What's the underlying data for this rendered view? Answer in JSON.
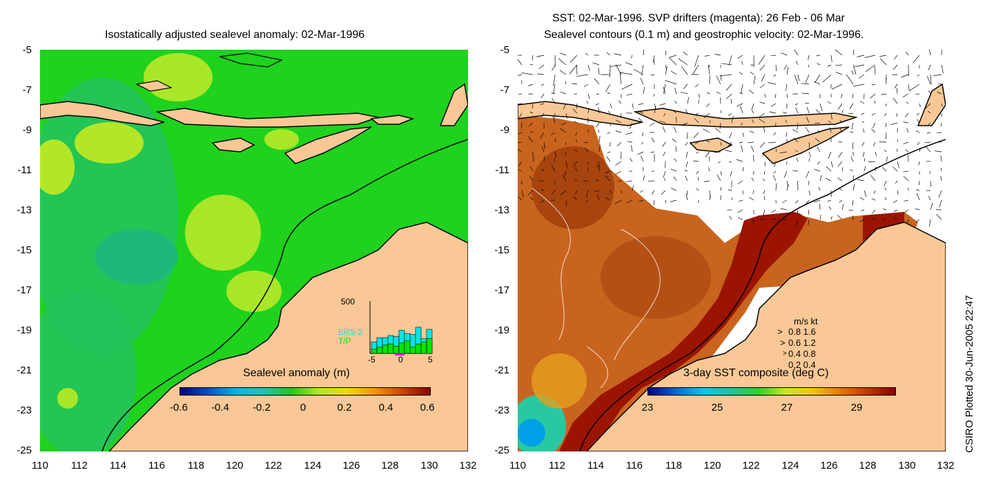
{
  "left_panel": {
    "title": "Isostatically adjusted sealevel anomaly: 02-Mar-1996",
    "colorbar": {
      "label": "Sealevel anomaly (m)",
      "ticks": [
        "-0.6",
        "-0.4",
        "-0.2",
        "0",
        "0.2",
        "0.4",
        "0.6"
      ],
      "colors": [
        "#000080",
        "#0050c8",
        "#00b4e6",
        "#18c8b4",
        "#20c820",
        "#b4e628",
        "#f0dc00",
        "#f09600",
        "#d24100",
        "#8c0000"
      ]
    },
    "inset": {
      "ymax_label": "500",
      "legend": [
        {
          "label": "ERS-2",
          "color": "#00e6e6"
        },
        {
          "label": "T/P",
          "color": "#00e600"
        }
      ],
      "x_ticks": [
        "-5",
        "0",
        "5"
      ],
      "ers2_counts": [
        110,
        150,
        150,
        170,
        160,
        220,
        190,
        180,
        250,
        140,
        230
      ],
      "tp_counts": [
        40,
        60,
        80,
        90,
        70,
        100,
        120,
        60,
        90,
        110,
        140
      ]
    }
  },
  "right_panel": {
    "title_line1": "SST: 02-Mar-1996. SVP drifters (magenta): 26 Feb - 06 Mar",
    "title_line2": "Sealevel contours (0.1 m) and geostrophic velocity: 02-Mar-1996.",
    "colorbar": {
      "label": "3-day SST composite (deg C)",
      "ticks": [
        "23",
        "25",
        "27",
        "29"
      ],
      "colors": [
        "#000080",
        "#0064dc",
        "#00c8f0",
        "#18c8a0",
        "#28d228",
        "#c8e628",
        "#f0c800",
        "#e67800",
        "#c83200",
        "#8c0000"
      ]
    },
    "velocity_key": {
      "header": "m/s  kt",
      "rows": [
        "0.8  1.6",
        "0.6  1.2",
        "0.4  0.8",
        "0.2  0.4"
      ]
    }
  },
  "axes": {
    "y_ticks": [
      "-5",
      "-7",
      "-9",
      "-11",
      "-13",
      "-15",
      "-17",
      "-19",
      "-21",
      "-23",
      "-25"
    ],
    "x_ticks": [
      "110",
      "112",
      "114",
      "116",
      "118",
      "120",
      "122",
      "124",
      "126",
      "128",
      "130",
      "132"
    ]
  },
  "credit": "CSIRO Plotted 30-Jun-2005 22:47",
  "colors": {
    "land": "#fac896",
    "ocean_green": "#1ed21e",
    "ocean_teal": "#23c35a",
    "ocean_yellow": "#aae628",
    "sst_hot": "#9a1400",
    "sst_warm": "#c8641e",
    "cloud": "#ffffff"
  }
}
